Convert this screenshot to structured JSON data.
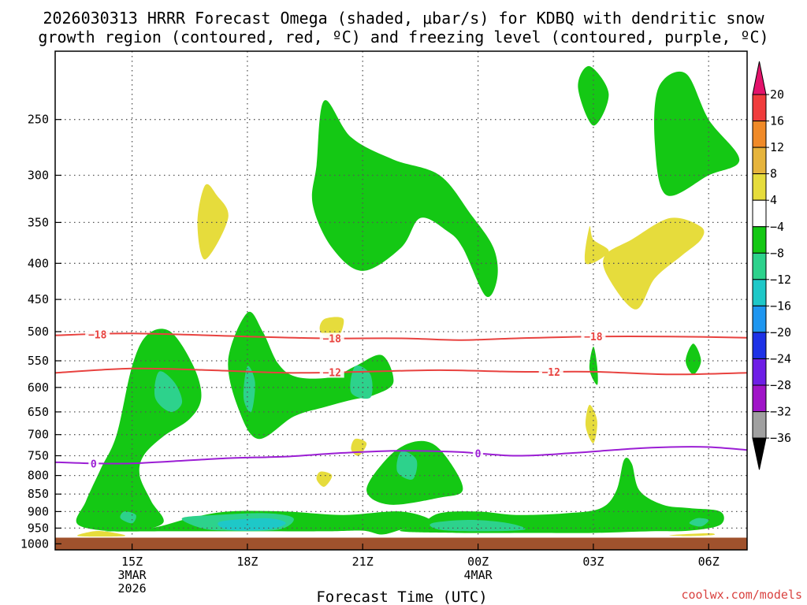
{
  "chart_data": {
    "type": "contour",
    "title_lines": [
      "2026030313 HRRR Forecast Omega (shaded, μbar/s) for KDBQ with dendritic snow",
      "growth region (contoured, red, ºC) and freezing level (contoured, purple, ºC)"
    ],
    "xlabel": "Forecast Time (UTC)",
    "credit": "coolwx.com/models",
    "x_ticks": [
      {
        "hour": 15,
        "lines": [
          "15Z",
          "3MAR",
          "2026"
        ]
      },
      {
        "hour": 18,
        "lines": [
          "18Z"
        ]
      },
      {
        "hour": 21,
        "lines": [
          "21Z"
        ]
      },
      {
        "hour": 24,
        "lines": [
          "00Z",
          "4MAR"
        ]
      },
      {
        "hour": 27,
        "lines": [
          "03Z"
        ]
      },
      {
        "hour": 30,
        "lines": [
          "06Z"
        ]
      }
    ],
    "x_range_hours": [
      13,
      31
    ],
    "y_ticks": [
      250,
      300,
      350,
      400,
      450,
      500,
      550,
      600,
      650,
      700,
      750,
      800,
      850,
      900,
      950,
      1000
    ],
    "y_range_mb": [
      200,
      1020
    ],
    "y_scale": "log-pressure",
    "ground_level_mb": 980,
    "colorbar": {
      "labels": [
        "20",
        "16",
        "12",
        "8",
        "4",
        "−4",
        "−8",
        "−12",
        "−16",
        "−20",
        "−24",
        "−28",
        "−32",
        "−36"
      ],
      "colors": [
        "#e3136b",
        "#f03c3c",
        "#f08a28",
        "#e6b43c",
        "#e6dc3c",
        "#ffffff",
        "#14c814",
        "#2dd28c",
        "#1ec8c8",
        "#1e96f0",
        "#1e32e6",
        "#6e1ee6",
        "#a014c8",
        "#a0a0a0",
        "#000000"
      ]
    },
    "series": [
      {
        "name": "-18",
        "color": "#e8423f",
        "x": [
          13,
          15,
          18,
          20,
          22,
          23.5,
          25,
          27,
          29,
          31
        ],
        "y": [
          506,
          503,
          508,
          511,
          511,
          514,
          511,
          508,
          508,
          510
        ],
        "labels": [
          {
            "text": "−18",
            "hour": 14.1
          },
          {
            "text": "−18",
            "hour": 20.2
          },
          {
            "text": "−18",
            "hour": 27.0
          }
        ]
      },
      {
        "name": "-12",
        "color": "#e8423f",
        "x": [
          13,
          15,
          17,
          19,
          21,
          23,
          25,
          27,
          29,
          31
        ],
        "y": [
          572,
          564,
          567,
          572,
          570,
          567,
          570,
          570,
          575,
          572
        ],
        "labels": [
          {
            "text": "−12",
            "hour": 20.2
          },
          {
            "text": "−12",
            "hour": 25.9
          }
        ]
      },
      {
        "name": "0",
        "color": "#9b1ed4",
        "x": [
          13,
          14,
          15,
          16,
          17.5,
          19,
          20.5,
          22,
          23.5,
          25,
          26.5,
          28,
          29,
          30,
          31
        ],
        "y": [
          766,
          769,
          769,
          764,
          756,
          752,
          743,
          738,
          741,
          750,
          743,
          733,
          729,
          729,
          736
        ],
        "labels": [
          {
            "text": "0",
            "hour": 14.0
          },
          {
            "text": "0",
            "hour": 24.0
          }
        ]
      }
    ],
    "regions": [
      {
        "value": "-4",
        "color": "#14c814",
        "points": [
          [
            14.6,
            700
          ],
          [
            14.2,
            780
          ],
          [
            13.8,
            870
          ],
          [
            13.6,
            940
          ],
          [
            14.8,
            960
          ],
          [
            15.8,
            935
          ],
          [
            15.5,
            870
          ],
          [
            15.2,
            800
          ],
          [
            15.3,
            750
          ],
          [
            15.8,
            705
          ],
          [
            16.5,
            665
          ],
          [
            16.8,
            620
          ],
          [
            16.6,
            560
          ],
          [
            16.0,
            500
          ],
          [
            15.4,
            505
          ],
          [
            15.0,
            560
          ]
        ]
      },
      {
        "value": "-8",
        "color": "#2dd28c",
        "points": [
          [
            15.7,
            570
          ],
          [
            16.1,
            590
          ],
          [
            16.3,
            630
          ],
          [
            16.0,
            650
          ],
          [
            15.6,
            620
          ]
        ]
      },
      {
        "value": "-8",
        "color": "#2dd28c",
        "points": [
          [
            14.8,
            900
          ],
          [
            15.1,
            910
          ],
          [
            15.0,
            935
          ],
          [
            14.7,
            920
          ]
        ]
      },
      {
        "value": "-4",
        "color": "#14c814",
        "points": [
          [
            18.0,
            470
          ],
          [
            17.5,
            550
          ],
          [
            17.8,
            650
          ],
          [
            18.3,
            710
          ],
          [
            19.2,
            660
          ],
          [
            20.0,
            640
          ],
          [
            20.7,
            625
          ],
          [
            21.3,
            615
          ],
          [
            21.8,
            590
          ],
          [
            21.5,
            540
          ],
          [
            20.8,
            560
          ],
          [
            20.2,
            580
          ],
          [
            19.3,
            580
          ],
          [
            18.8,
            555
          ],
          [
            18.4,
            500
          ]
        ]
      },
      {
        "value": "-8",
        "color": "#2dd28c",
        "points": [
          [
            18.0,
            560
          ],
          [
            18.2,
            590
          ],
          [
            18.1,
            650
          ],
          [
            17.9,
            620
          ]
        ]
      },
      {
        "value": "-8",
        "color": "#2dd28c",
        "points": [
          [
            20.8,
            560
          ],
          [
            21.2,
            575
          ],
          [
            21.2,
            620
          ],
          [
            20.7,
            610
          ]
        ]
      },
      {
        "value": "-4",
        "color": "#14c814",
        "points": [
          [
            22.2,
            720
          ],
          [
            21.6,
            760
          ],
          [
            21.1,
            840
          ],
          [
            21.7,
            880
          ],
          [
            23.0,
            860
          ],
          [
            23.6,
            840
          ],
          [
            23.3,
            770
          ],
          [
            22.8,
            720
          ]
        ]
      },
      {
        "value": "-8",
        "color": "#2dd28c",
        "points": [
          [
            22.0,
            740
          ],
          [
            22.4,
            760
          ],
          [
            22.3,
            810
          ],
          [
            21.9,
            790
          ]
        ]
      },
      {
        "value": "-4",
        "color": "#14c814",
        "points": [
          [
            14.3,
            960
          ],
          [
            16.0,
            960
          ],
          [
            18.0,
            960
          ],
          [
            20.0,
            960
          ],
          [
            21.0,
            958
          ],
          [
            21.5,
            970
          ],
          [
            22.0,
            955
          ],
          [
            22.8,
            930
          ],
          [
            22.0,
            900
          ],
          [
            20.5,
            910
          ],
          [
            19.0,
            900
          ],
          [
            17.5,
            900
          ],
          [
            16.5,
            920
          ],
          [
            15.5,
            950
          ]
        ]
      },
      {
        "value": "-8",
        "color": "#2dd28c",
        "points": [
          [
            16.3,
            920
          ],
          [
            17.2,
            910
          ],
          [
            18.5,
            905
          ],
          [
            19.2,
            920
          ],
          [
            18.8,
            955
          ],
          [
            17.5,
            958
          ],
          [
            16.8,
            950
          ]
        ]
      },
      {
        "value": "-12",
        "color": "#1ec8c8",
        "points": [
          [
            17.3,
            930
          ],
          [
            18.5,
            920
          ],
          [
            19.0,
            935
          ],
          [
            18.5,
            955
          ],
          [
            17.5,
            955
          ]
        ]
      },
      {
        "value": "-4",
        "color": "#14c814",
        "points": [
          [
            22.0,
            960
          ],
          [
            23.5,
            965
          ],
          [
            25.5,
            965
          ],
          [
            27.0,
            965
          ],
          [
            28.5,
            960
          ],
          [
            29.5,
            958
          ],
          [
            30.3,
            940
          ],
          [
            30.3,
            900
          ],
          [
            29.5,
            890
          ],
          [
            28.8,
            880
          ],
          [
            28.2,
            840
          ],
          [
            28.0,
            770
          ],
          [
            27.8,
            760
          ],
          [
            27.6,
            840
          ],
          [
            27.2,
            890
          ],
          [
            26.3,
            905
          ],
          [
            25.0,
            910
          ],
          [
            24.0,
            900
          ],
          [
            23.0,
            905
          ],
          [
            22.5,
            940
          ]
        ]
      },
      {
        "value": "-8",
        "color": "#2dd28c",
        "points": [
          [
            22.8,
            935
          ],
          [
            23.8,
            925
          ],
          [
            24.8,
            935
          ],
          [
            25.2,
            955
          ],
          [
            24.0,
            960
          ],
          [
            23.0,
            955
          ]
        ]
      },
      {
        "value": "-8",
        "color": "#2dd28c",
        "points": [
          [
            29.7,
            920
          ],
          [
            30.0,
            925
          ],
          [
            29.8,
            945
          ],
          [
            29.5,
            935
          ]
        ]
      },
      {
        "value": "-4",
        "color": "#14c814",
        "points": [
          [
            20.0,
            235
          ],
          [
            19.8,
            290
          ],
          [
            19.7,
            330
          ],
          [
            20.2,
            380
          ],
          [
            21.0,
            410
          ],
          [
            22.0,
            380
          ],
          [
            22.5,
            345
          ],
          [
            23.2,
            360
          ],
          [
            23.6,
            380
          ],
          [
            24.2,
            445
          ],
          [
            24.5,
            420
          ],
          [
            24.4,
            380
          ],
          [
            23.8,
            340
          ],
          [
            23.0,
            300
          ],
          [
            21.8,
            285
          ],
          [
            20.7,
            265
          ]
        ]
      },
      {
        "value": "-4",
        "color": "#14c814",
        "points": [
          [
            26.9,
            210
          ],
          [
            26.6,
            225
          ],
          [
            27.0,
            255
          ],
          [
            27.4,
            230
          ]
        ]
      },
      {
        "value": "-4",
        "color": "#14c814",
        "points": [
          [
            29.4,
            215
          ],
          [
            28.7,
            225
          ],
          [
            28.6,
            270
          ],
          [
            28.9,
            320
          ],
          [
            30.0,
            300
          ],
          [
            30.8,
            285
          ],
          [
            30.0,
            250
          ]
        ]
      },
      {
        "value": "-4",
        "color": "#14c814",
        "points": [
          [
            29.6,
            520
          ],
          [
            29.4,
            550
          ],
          [
            29.6,
            575
          ],
          [
            29.8,
            550
          ]
        ]
      },
      {
        "value": "-4",
        "color": "#14c814",
        "points": [
          [
            27.0,
            525
          ],
          [
            26.9,
            565
          ],
          [
            27.1,
            595
          ],
          [
            27.1,
            560
          ]
        ]
      },
      {
        "value": "4",
        "color": "#e6dc3c",
        "points": [
          [
            16.9,
            310
          ],
          [
            16.7,
            350
          ],
          [
            16.9,
            395
          ],
          [
            17.5,
            345
          ],
          [
            17.2,
            320
          ]
        ]
      },
      {
        "value": "4",
        "color": "#e6dc3c",
        "points": [
          [
            20.0,
            480
          ],
          [
            19.9,
            500
          ],
          [
            20.3,
            515
          ],
          [
            20.5,
            480
          ]
        ]
      },
      {
        "value": "4",
        "color": "#e6dc3c",
        "points": [
          [
            20.7,
            735
          ],
          [
            20.9,
            750
          ],
          [
            21.1,
            720
          ],
          [
            20.8,
            710
          ]
        ]
      },
      {
        "value": "4",
        "color": "#e6dc3c",
        "points": [
          [
            19.9,
            790
          ],
          [
            19.8,
            810
          ],
          [
            20.0,
            830
          ],
          [
            20.2,
            800
          ]
        ]
      },
      {
        "value": "4",
        "color": "#e6dc3c",
        "points": [
          [
            14.0,
            960
          ],
          [
            13.6,
            975
          ],
          [
            14.8,
            975
          ],
          [
            14.4,
            962
          ]
        ]
      },
      {
        "value": "4",
        "color": "#e6dc3c",
        "points": [
          [
            26.9,
            355
          ],
          [
            26.8,
            400
          ],
          [
            27.4,
            385
          ],
          [
            27.0,
            370
          ]
        ]
      },
      {
        "value": "4",
        "color": "#e6dc3c",
        "points": [
          [
            26.9,
            635
          ],
          [
            26.8,
            680
          ],
          [
            27.0,
            720
          ],
          [
            27.1,
            670
          ]
        ]
      },
      {
        "value": "4",
        "color": "#e6dc3c",
        "points": [
          [
            28.0,
            370
          ],
          [
            27.3,
            390
          ],
          [
            27.4,
            420
          ],
          [
            28.1,
            465
          ],
          [
            28.6,
            420
          ],
          [
            29.3,
            390
          ],
          [
            29.8,
            370
          ],
          [
            29.8,
            355
          ],
          [
            29.0,
            345
          ]
        ]
      },
      {
        "value": "4",
        "color": "#e6dc3c",
        "points": [
          [
            29.0,
            972
          ],
          [
            30.0,
            966
          ],
          [
            30.1,
            972
          ],
          [
            29.4,
            975
          ]
        ]
      }
    ]
  }
}
